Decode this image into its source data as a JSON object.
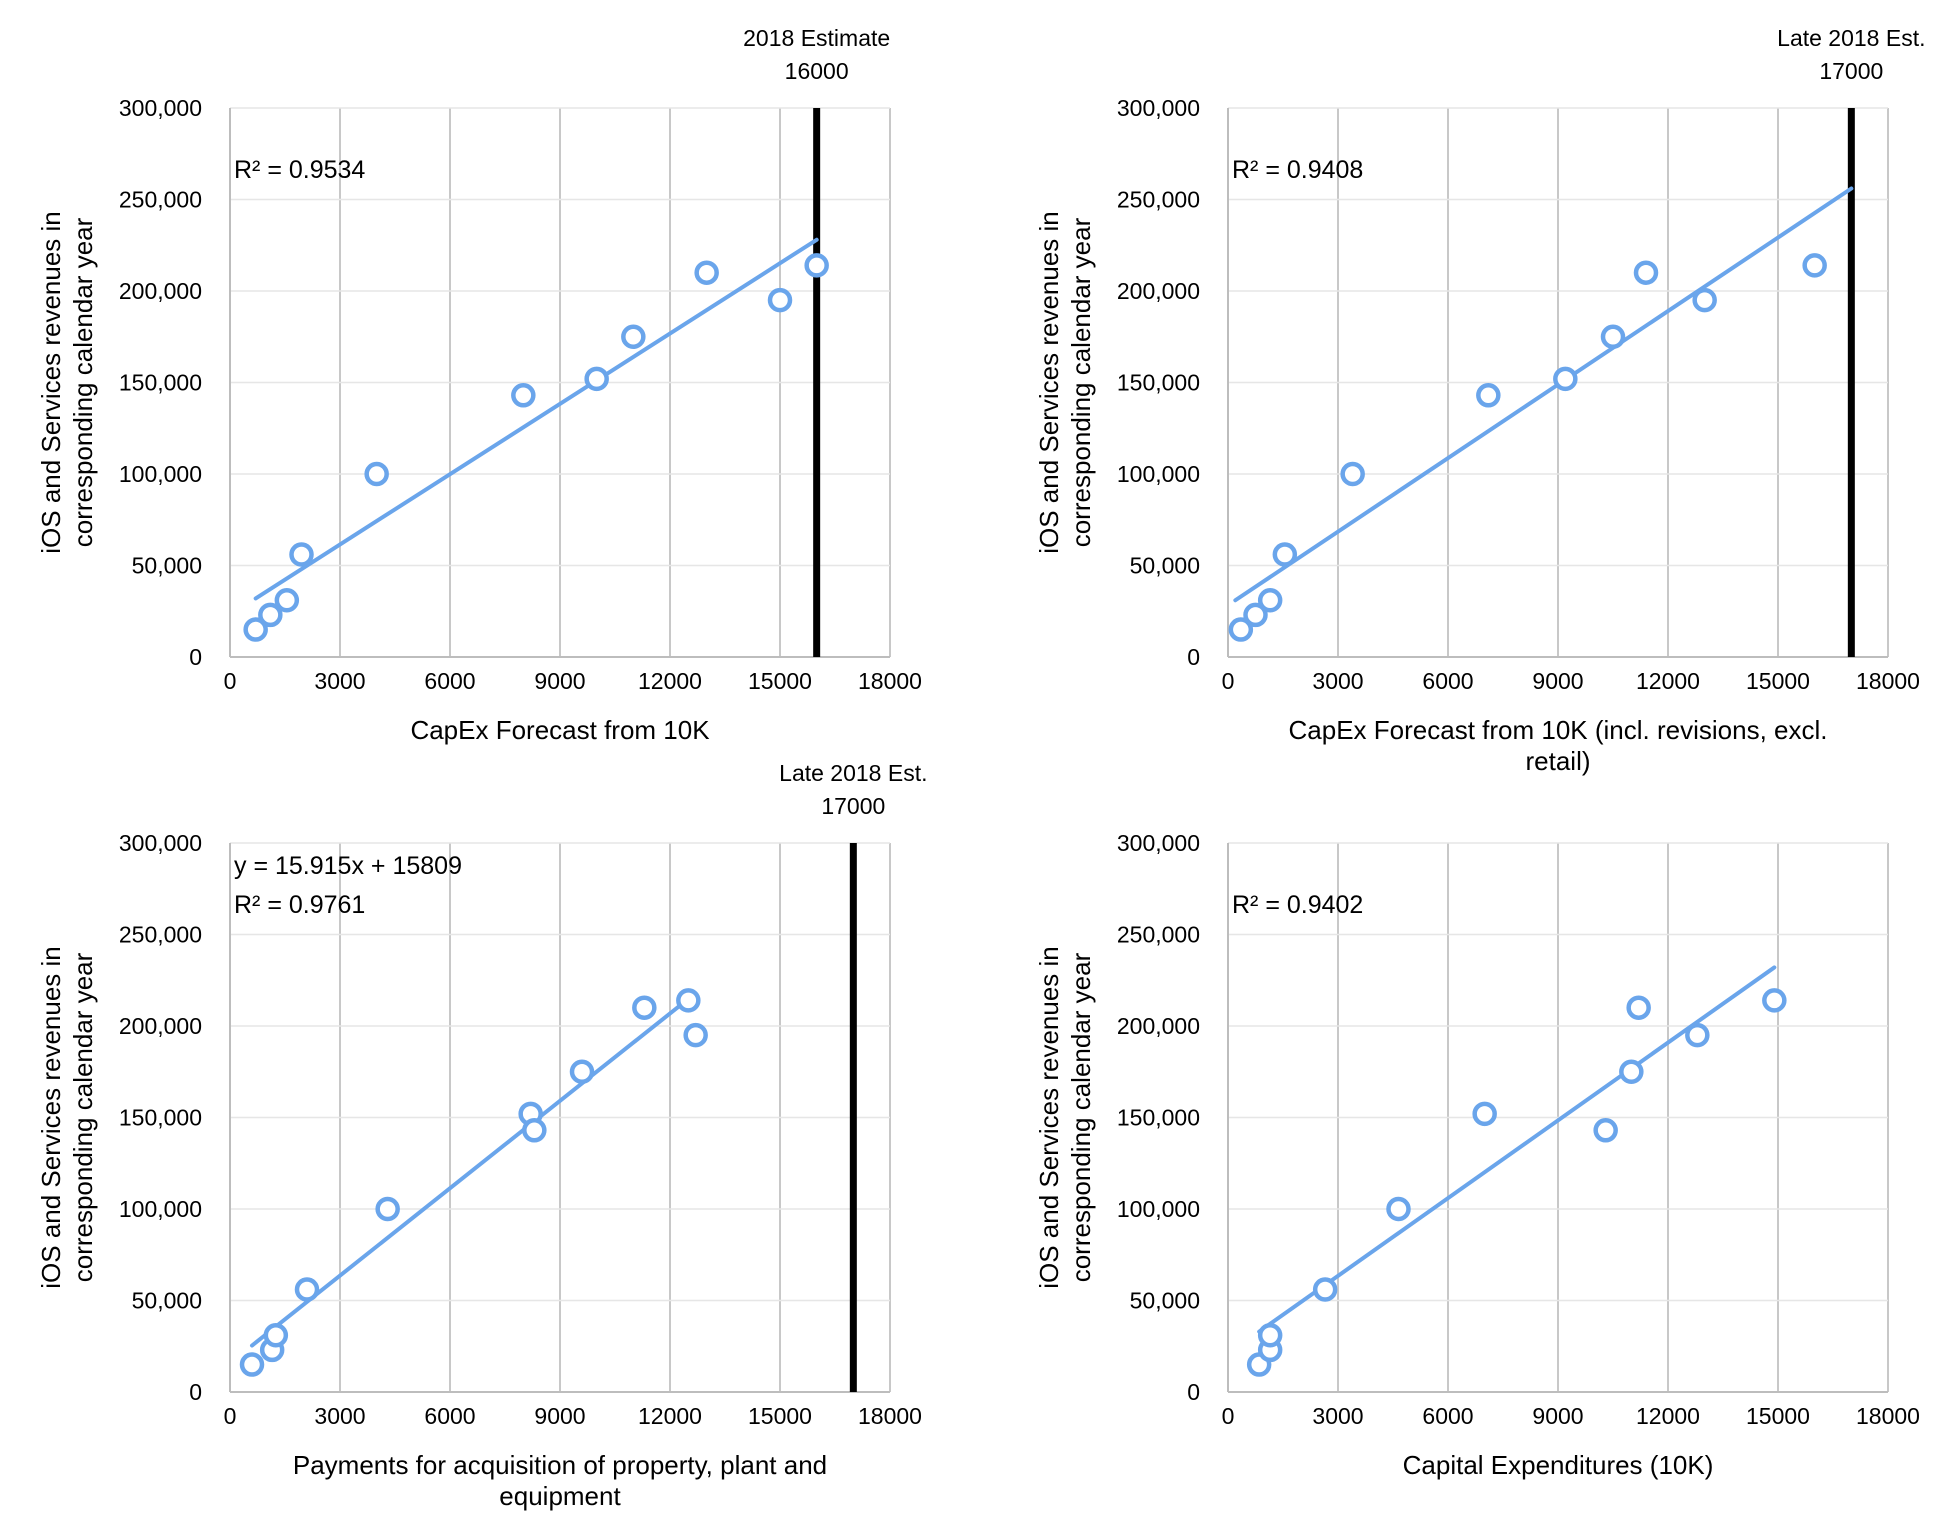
{
  "colors": {
    "series": "#6aa5eb",
    "grid": "#c8c8c8",
    "marker_line": "#000000"
  },
  "chart_data": [
    {
      "type": "scatter",
      "xlabel": [
        "CapEx Forecast from 10K"
      ],
      "ylabel": [
        "iOS and Services revenues in",
        "corresponding calendar year"
      ],
      "xlim": [
        0,
        18000
      ],
      "ylim": [
        0,
        300000
      ],
      "xticks": [
        0,
        3000,
        6000,
        9000,
        12000,
        15000,
        18000
      ],
      "yticks": [
        0,
        50000,
        100000,
        150000,
        200000,
        250000,
        300000
      ],
      "ytick_labels": [
        "0",
        "50,000",
        "100,000",
        "150,000",
        "200,000",
        "250,000",
        "300,000"
      ],
      "grid": "vertical",
      "x": [
        700,
        1100,
        1550,
        1950,
        4000,
        8000,
        10000,
        11000,
        13000,
        15000,
        16000
      ],
      "y": [
        15000,
        23000,
        31000,
        56000,
        100000,
        143000,
        152000,
        175000,
        210000,
        195000,
        214000
      ],
      "trendline": {
        "x": [
          700,
          16000
        ],
        "y": [
          32000,
          228000
        ]
      },
      "stats": [
        "R² = 0.9534"
      ],
      "marker": {
        "x": 16000,
        "label": [
          "2018 Estimate",
          "16000"
        ]
      }
    },
    {
      "type": "scatter",
      "xlabel": [
        "CapEx Forecast from 10K (incl. revisions, excl.",
        "retail)"
      ],
      "ylabel": [
        "iOS and Services revenues in",
        "corresponding calendar year"
      ],
      "xlim": [
        0,
        18000
      ],
      "ylim": [
        0,
        300000
      ],
      "xticks": [
        0,
        3000,
        6000,
        9000,
        12000,
        15000,
        18000
      ],
      "yticks": [
        0,
        50000,
        100000,
        150000,
        200000,
        250000,
        300000
      ],
      "ytick_labels": [
        "0",
        "50,000",
        "100,000",
        "150,000",
        "200,000",
        "250,000",
        "300,000"
      ],
      "grid": "vertical",
      "x": [
        350,
        750,
        1150,
        1550,
        3400,
        7100,
        9200,
        10500,
        11400,
        13000,
        16000
      ],
      "y": [
        15000,
        23000,
        31000,
        56000,
        100000,
        143000,
        152000,
        175000,
        210000,
        195000,
        214000
      ],
      "trendline": {
        "x": [
          200,
          17000
        ],
        "y": [
          31000,
          256000
        ]
      },
      "stats": [
        "R² = 0.9408"
      ],
      "marker": {
        "x": 17000,
        "label": [
          "Late 2018 Est.",
          "17000"
        ]
      }
    },
    {
      "type": "scatter",
      "xlabel": [
        "Payments for acquisition of property, plant and",
        "equipment"
      ],
      "ylabel": [
        "iOS and Services revenues in",
        "corresponding calendar year"
      ],
      "xlim": [
        0,
        18000
      ],
      "ylim": [
        0,
        300000
      ],
      "xticks": [
        0,
        3000,
        6000,
        9000,
        12000,
        15000,
        18000
      ],
      "yticks": [
        0,
        50000,
        100000,
        150000,
        200000,
        250000,
        300000
      ],
      "ytick_labels": [
        "0",
        "50,000",
        "100,000",
        "150,000",
        "200,000",
        "250,000",
        "300,000"
      ],
      "grid": "vertical",
      "x": [
        600,
        1150,
        1250,
        2100,
        4300,
        8200,
        8300,
        9600,
        11300,
        12500,
        12700
      ],
      "y": [
        15000,
        23000,
        31000,
        56000,
        100000,
        152000,
        143000,
        175000,
        210000,
        214000,
        195000
      ],
      "trendline": {
        "x": [
          600,
          12500
        ],
        "y": [
          25400,
          214800
        ]
      },
      "stats": [
        "y = 15.915x + 15809",
        "R² = 0.9761"
      ],
      "marker": {
        "x": 17000,
        "label": [
          "Late 2018 Est.",
          "17000"
        ]
      }
    },
    {
      "type": "scatter",
      "xlabel": [
        "Capital Expenditures (10K)"
      ],
      "ylabel": [
        "iOS and Services revenues in",
        "corresponding calendar year"
      ],
      "xlim": [
        0,
        18000
      ],
      "ylim": [
        0,
        300000
      ],
      "xticks": [
        0,
        3000,
        6000,
        9000,
        12000,
        15000,
        18000
      ],
      "yticks": [
        0,
        50000,
        100000,
        150000,
        200000,
        250000,
        300000
      ],
      "ytick_labels": [
        "0",
        "50,000",
        "100,000",
        "150,000",
        "200,000",
        "250,000",
        "300,000"
      ],
      "grid": "vertical",
      "x": [
        850,
        1150,
        1150,
        2650,
        4650,
        7000,
        10300,
        11000,
        11200,
        12800,
        14900
      ],
      "y": [
        15000,
        23000,
        31000,
        56000,
        100000,
        152000,
        143000,
        175000,
        210000,
        195000,
        214000
      ],
      "trendline": {
        "x": [
          850,
          14900
        ],
        "y": [
          33000,
          232000
        ]
      },
      "stats": [
        "R² = 0.9402"
      ],
      "marker": null
    }
  ]
}
